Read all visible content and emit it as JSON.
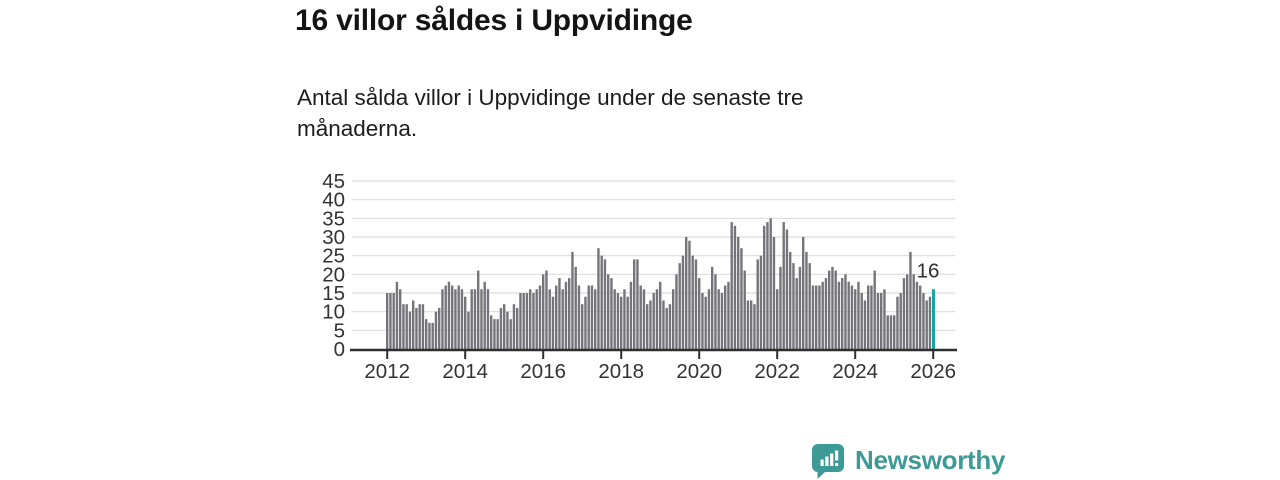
{
  "header": {
    "title": "16 villor såldes i Uppvidinge"
  },
  "subtitle": "Antal sålda villor i Uppvidinge under de senaste tre månaderna.",
  "footer": {
    "brand": "Newsworthy",
    "logo_icon": "bar-chart-speech-bubble-icon",
    "brand_color": "#3d9a96"
  },
  "chart_data": {
    "type": "bar",
    "title": "16 villor såldes i Uppvidinge",
    "subtitle": "Antal sålda villor i Uppvidinge under de senaste tre månaderna.",
    "x_start": "2012-01",
    "x_interval": "monthly",
    "x_tick_labels": [
      "2012",
      "2014",
      "2016",
      "2018",
      "2020",
      "2022",
      "2024",
      "2026"
    ],
    "y_ticks": [
      0,
      5,
      10,
      15,
      20,
      25,
      30,
      35,
      40,
      45
    ],
    "ylim": [
      0,
      45
    ],
    "grid": "horizontal",
    "legend": "none",
    "bar_color": "#74747a",
    "highlight_color": "#12a7a3",
    "axis_color": "#2f2f2f",
    "gridline_color": "#dcdcdc",
    "tick_label_color": "#333333",
    "highlight_index": 168,
    "annotation": {
      "text": "16",
      "target": "last-bar"
    },
    "values": [
      15,
      15,
      15,
      18,
      16,
      12,
      12,
      10,
      13,
      11,
      12,
      12,
      8,
      7,
      7,
      10,
      11,
      16,
      17,
      18,
      17,
      16,
      17,
      16,
      14,
      10,
      16,
      16,
      21,
      16,
      18,
      16,
      9,
      8,
      8,
      11,
      12,
      10,
      8,
      12,
      11,
      15,
      15,
      15,
      16,
      15,
      16,
      17,
      20,
      21,
      16,
      14,
      17,
      19,
      16,
      18,
      19,
      26,
      22,
      17,
      12,
      14,
      17,
      17,
      16,
      27,
      25,
      24,
      20,
      19,
      16,
      15,
      14,
      16,
      14,
      18,
      24,
      24,
      17,
      16,
      12,
      13,
      15,
      16,
      18,
      13,
      11,
      12,
      16,
      20,
      23,
      25,
      30,
      29,
      25,
      24,
      19,
      15,
      14,
      16,
      22,
      20,
      16,
      15,
      17,
      18,
      34,
      33,
      30,
      27,
      21,
      13,
      13,
      12,
      24,
      25,
      33,
      34,
      35,
      30,
      16,
      22,
      34,
      32,
      26,
      23,
      19,
      22,
      30,
      26,
      23,
      17,
      17,
      17,
      18,
      19,
      21,
      22,
      21,
      18,
      19,
      20,
      18,
      17,
      16,
      18,
      15,
      13,
      17,
      17,
      21,
      15,
      15,
      16,
      9,
      9,
      9,
      14,
      15,
      19,
      20,
      26,
      20,
      18,
      17,
      15,
      13,
      14,
      16
    ]
  }
}
